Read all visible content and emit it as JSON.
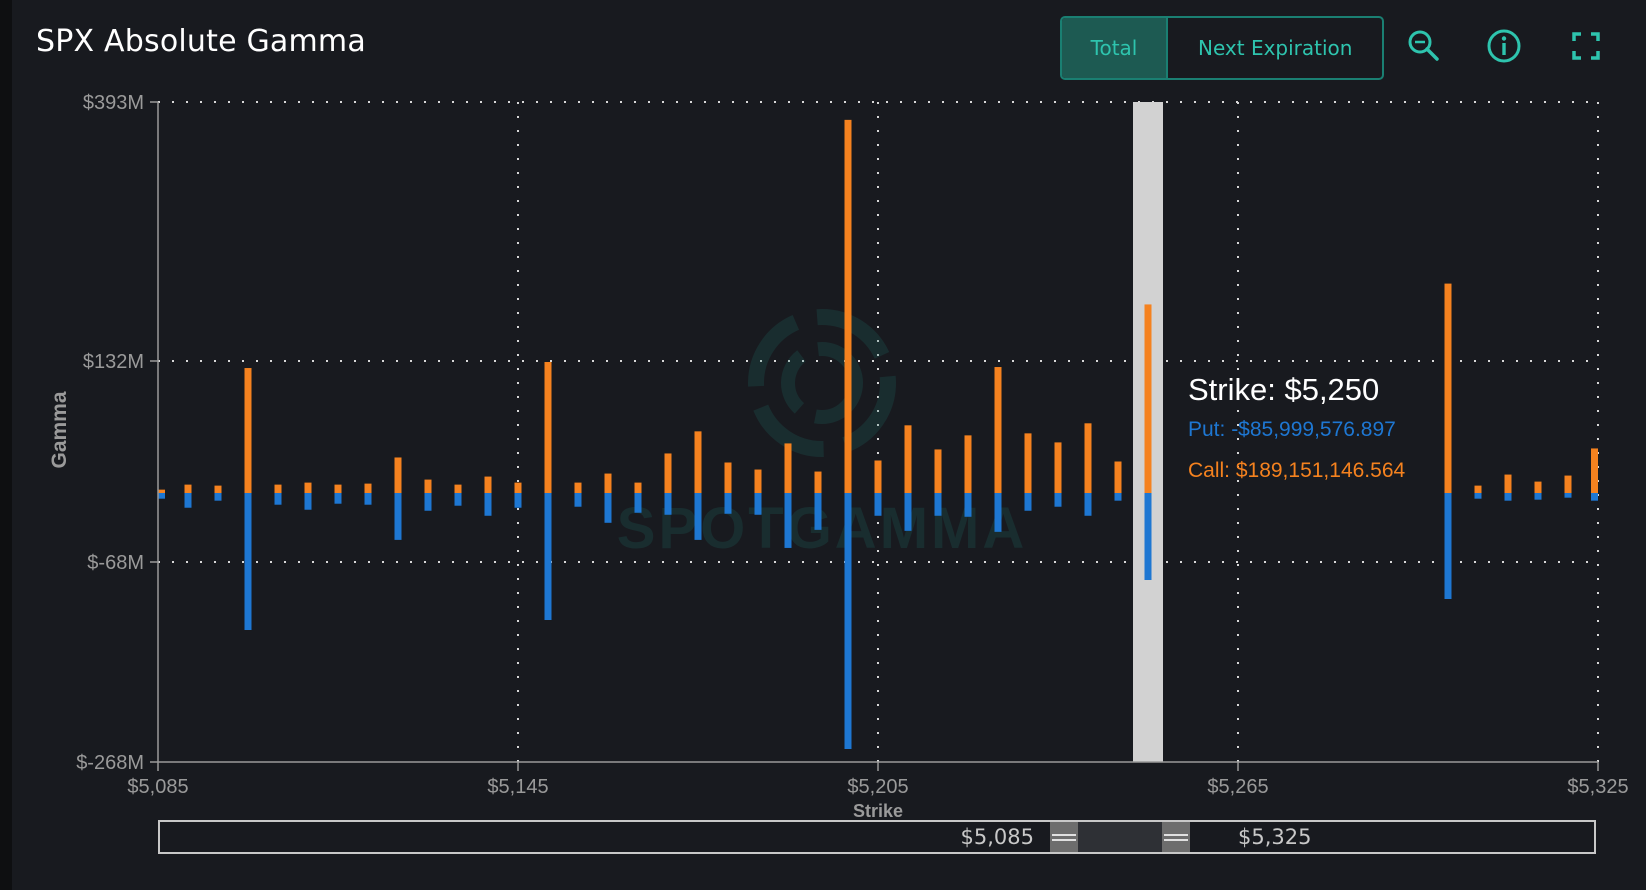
{
  "header": {
    "title": "SPX Absolute Gamma",
    "tabs": [
      {
        "label": "Total",
        "active": true
      },
      {
        "label": "Next Expiration",
        "active": false
      }
    ],
    "icons": [
      "zoom-icon",
      "info-icon",
      "fullscreen-icon"
    ],
    "accent_color": "#2ec4ae"
  },
  "chart_data": {
    "type": "bar",
    "xlabel": "Strike",
    "ylabel": "Gamma",
    "x_ticks": [
      "$5,085",
      "$5,145",
      "$5,205",
      "$5,265",
      "$5,325"
    ],
    "y_ticks": [
      "$393M",
      "$132M",
      "$-68M",
      "$-268M"
    ],
    "xlim": [
      5085,
      5325
    ],
    "ylim": [
      -268,
      393
    ],
    "y_unit": "$M",
    "series": [
      {
        "name": "Call",
        "color": "#f5821f",
        "stacked_above_zero": true
      },
      {
        "name": "Put",
        "color": "#1e77d2",
        "stacked_below_zero": true
      }
    ],
    "strikes": [
      5085,
      5090,
      5095,
      5100,
      5105,
      5110,
      5115,
      5120,
      5125,
      5130,
      5135,
      5140,
      5145,
      5150,
      5155,
      5160,
      5165,
      5170,
      5175,
      5180,
      5185,
      5190,
      5195,
      5200,
      5205,
      5210,
      5215,
      5220,
      5225,
      5230,
      5235,
      5240,
      5245,
      5250,
      5300,
      5305,
      5310,
      5315,
      5320,
      5325
    ],
    "call_values": [
      4,
      9,
      8,
      125,
      9,
      11,
      9,
      10,
      36,
      14,
      9,
      17,
      11,
      131,
      11,
      20,
      11,
      40,
      62,
      31,
      24,
      50,
      22,
      375,
      33,
      68,
      44,
      58,
      126,
      60,
      51,
      70,
      32,
      189,
      210,
      8,
      19,
      12,
      18,
      45
    ],
    "put_values": [
      -5,
      -14,
      -7,
      -136,
      -11,
      -16,
      -10,
      -11,
      -46,
      -17,
      -12,
      -22,
      -14,
      -126,
      -13,
      -29,
      -19,
      -21,
      -46,
      -20,
      -21,
      -54,
      -36,
      -255,
      -22,
      -37,
      -22,
      -23,
      -38,
      -17,
      -13,
      -22,
      -7,
      -86,
      -105,
      -5,
      -7,
      -6,
      -4,
      -7
    ],
    "watermark": "SPOTGAMMA",
    "highlight_strike": 5250,
    "tooltip": {
      "title": "Strike: $5,250",
      "put": "Put: -$85,999,576.897",
      "call": "Call: $189,151,146.564"
    }
  },
  "navigator": {
    "min_label": "$5,085",
    "max_label": "$5,325"
  }
}
